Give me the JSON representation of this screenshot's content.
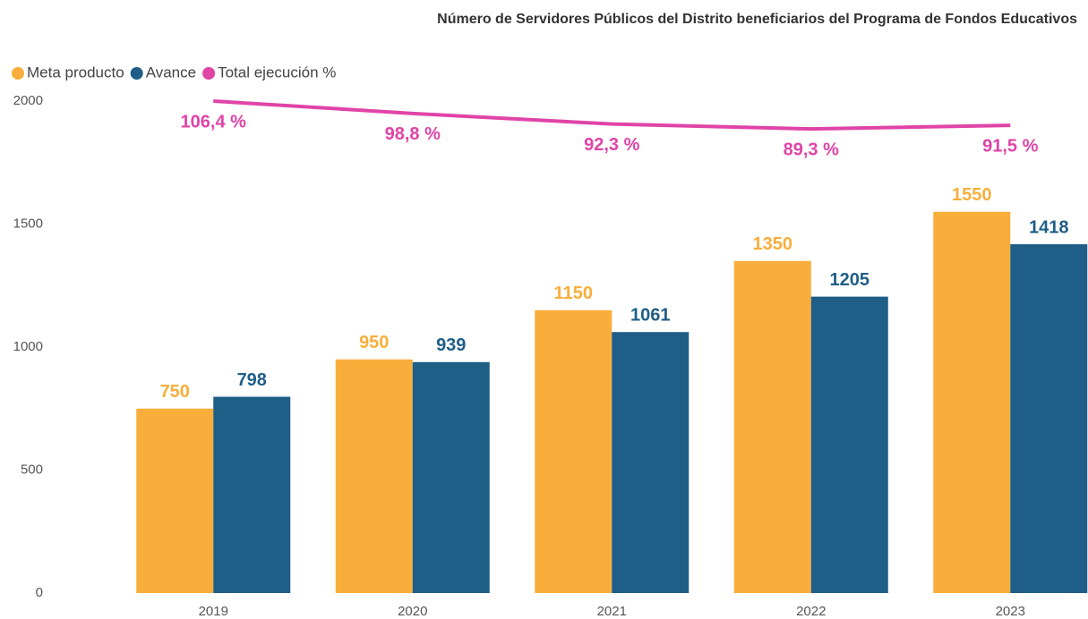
{
  "chart_data": {
    "type": "bar",
    "title": "Número de Servidores Públicos del Distrito beneficiarios del Programa de Fondos Educativos",
    "categories": [
      "2019",
      "2020",
      "2021",
      "2022",
      "2023"
    ],
    "series": [
      {
        "name": "Meta producto",
        "type": "bar",
        "color": "#F9AE3B",
        "values": [
          750,
          950,
          1150,
          1350,
          1550
        ]
      },
      {
        "name": "Avance",
        "type": "bar",
        "color": "#1F5E87",
        "values": [
          798,
          939,
          1061,
          1205,
          1418
        ]
      },
      {
        "name": "Total ejecución %",
        "type": "line",
        "axis": "y2",
        "color": "#E044A7",
        "values": [
          106.4,
          98.8,
          92.3,
          89.3,
          91.5
        ],
        "value_labels": [
          "106,4 %",
          "98,8 %",
          "92,3 %",
          "89,3 %",
          "91,5 %"
        ]
      }
    ],
    "ylim": [
      0,
      2000
    ],
    "yticks": [
      0,
      500,
      1000,
      1500,
      2000
    ],
    "y2lim": [
      -196,
      106.4
    ],
    "legend": "top-left",
    "grid": false
  }
}
